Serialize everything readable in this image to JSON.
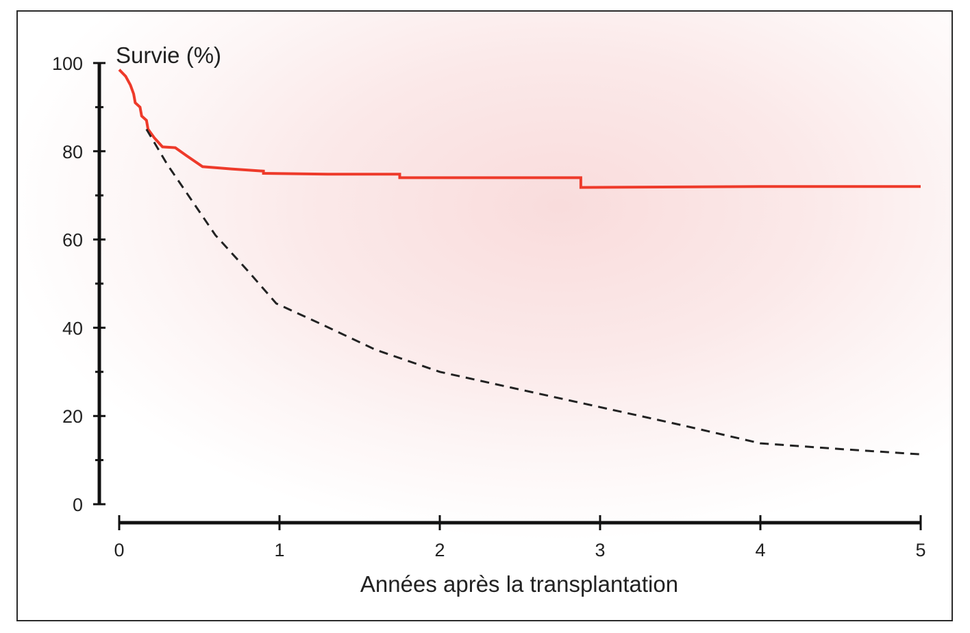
{
  "chart_data": {
    "type": "line",
    "title": "",
    "ylabel": "Survie (%)",
    "xlabel": "Années après la transplantation",
    "xlim": [
      0,
      5
    ],
    "ylim": [
      0,
      100
    ],
    "x_ticks": [
      "0",
      "1",
      "2",
      "3",
      "4",
      "5"
    ],
    "y_ticks": [
      "0",
      "20",
      "40",
      "60",
      "80",
      "100"
    ],
    "grid": false,
    "legend": "none",
    "series": [
      {
        "style": "solid",
        "color": "#ee3a2a",
        "step": true,
        "points": [
          [
            0.0,
            98.5
          ],
          [
            0.04,
            97
          ],
          [
            0.07,
            95
          ],
          [
            0.09,
            93
          ],
          [
            0.1,
            91
          ],
          [
            0.13,
            90
          ],
          [
            0.14,
            88
          ],
          [
            0.17,
            87
          ],
          [
            0.18,
            85
          ],
          [
            0.22,
            83
          ],
          [
            0.27,
            81
          ],
          [
            0.35,
            80.8
          ],
          [
            0.42,
            79
          ],
          [
            0.52,
            76.5
          ],
          [
            0.7,
            76
          ],
          [
            0.9,
            75.5
          ],
          [
            0.9,
            75
          ],
          [
            1.3,
            74.8
          ],
          [
            1.75,
            74.8
          ],
          [
            1.75,
            74
          ],
          [
            2.88,
            74
          ],
          [
            2.88,
            71.8
          ],
          [
            4.0,
            72
          ],
          [
            5.0,
            72
          ]
        ]
      },
      {
        "style": "dashed",
        "color": "#222222",
        "step": false,
        "points": [
          [
            0.17,
            85
          ],
          [
            0.3,
            77
          ],
          [
            0.45,
            69
          ],
          [
            0.6,
            61
          ],
          [
            0.8,
            53
          ],
          [
            0.98,
            45.5
          ],
          [
            1.25,
            41
          ],
          [
            1.6,
            35
          ],
          [
            2.0,
            30
          ],
          [
            2.5,
            26
          ],
          [
            3.0,
            22
          ],
          [
            3.5,
            18
          ],
          [
            4.0,
            13.8
          ],
          [
            4.5,
            12.5
          ],
          [
            5.0,
            11.3
          ]
        ]
      }
    ]
  }
}
